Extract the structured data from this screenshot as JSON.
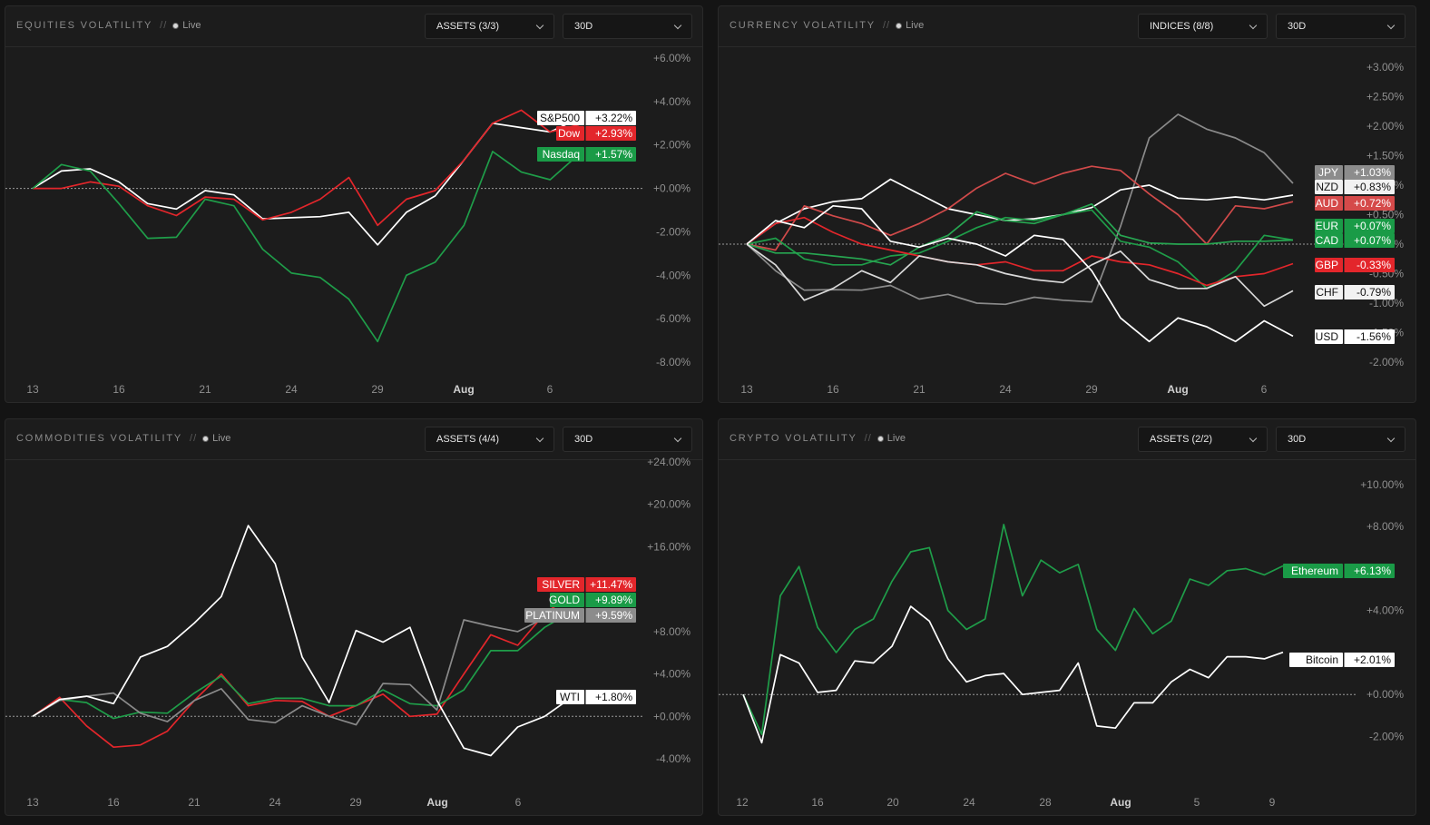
{
  "panels": [
    {
      "title": "EQUITIES VOLATILITY",
      "separator": "//",
      "status": "Live",
      "assets_button": "ASSETS (3/3)",
      "period_button": "30D",
      "chart_data": {
        "type": "line",
        "x_ticks": [
          "13",
          "16",
          "21",
          "24",
          "29",
          "Aug",
          "6"
        ],
        "y_ticks": [
          "+6.00%",
          "+4.00%",
          "+2.00%",
          "+0.00%",
          "-2.00%",
          "-4.00%",
          "-6.00%",
          "-8.00%"
        ],
        "ylim": [
          -8,
          6
        ],
        "ylabel": "",
        "xlabel": "",
        "baseline": 0,
        "series": [
          {
            "name": "S&P500",
            "value_label": "+3.22%",
            "color": "#ffffff",
            "label_bg": "#ffffff",
            "label_fg": "#111111",
            "values": [
              0,
              0.8,
              0.9,
              0.3,
              -0.7,
              -0.95,
              -0.1,
              -0.3,
              -1.4,
              -1.35,
              -1.3,
              -1.1,
              -2.6,
              -1.1,
              -0.35,
              1.3,
              3.0,
              2.8,
              2.6,
              3.22
            ]
          },
          {
            "name": "Dow",
            "value_label": "+2.93%",
            "color": "#e3262b",
            "label_bg": "#e3262b",
            "label_fg": "#ffffff",
            "values": [
              0,
              0,
              0.3,
              0.1,
              -0.8,
              -1.25,
              -0.4,
              -0.5,
              -1.45,
              -1.1,
              -0.5,
              0.5,
              -1.7,
              -0.5,
              -0.1,
              1.3,
              3.0,
              3.6,
              2.6,
              2.93
            ]
          },
          {
            "name": "Nasdaq",
            "value_label": "+1.57%",
            "color": "#1f9d49",
            "label_bg": "#1a9b47",
            "label_fg": "#ffffff",
            "values": [
              0,
              1.1,
              0.8,
              -0.7,
              -2.3,
              -2.25,
              -0.5,
              -0.8,
              -2.8,
              -3.9,
              -4.1,
              -5.1,
              -7.05,
              -4.0,
              -3.4,
              -1.7,
              1.7,
              0.75,
              0.4,
              1.57
            ]
          }
        ]
      }
    },
    {
      "title": "CURRENCY VOLATILITY",
      "separator": "//",
      "status": "Live",
      "assets_button": "INDICES (8/8)",
      "period_button": "30D",
      "chart_data": {
        "type": "line",
        "x_ticks": [
          "13",
          "16",
          "21",
          "24",
          "29",
          "Aug",
          "6"
        ],
        "y_ticks": [
          "+3.00%",
          "+2.50%",
          "+2.00%",
          "+1.50%",
          "+1.00%",
          "+0.50%",
          "+0.00%",
          "-0.50%",
          "-1.00%",
          "-1.50%",
          "-2.00%"
        ],
        "ylim": [
          -2,
          3
        ],
        "ylabel": "",
        "xlabel": "",
        "baseline": 0,
        "series": [
          {
            "name": "JPY",
            "value_label": "+1.03%",
            "color": "#8a8a8a",
            "label_bg": "#8c8c8c",
            "label_fg": "#ffffff",
            "values": [
              0,
              -0.45,
              -0.78,
              -0.77,
              -0.78,
              -0.7,
              -0.93,
              -0.85,
              -1.0,
              -1.02,
              -0.9,
              -0.95,
              -0.98,
              0.3,
              1.8,
              2.2,
              1.95,
              1.8,
              1.55,
              1.03
            ]
          },
          {
            "name": "NZD",
            "value_label": "+0.83%",
            "color": "#ffffff",
            "label_bg": "#f2f2f2",
            "label_fg": "#111111",
            "values": [
              0,
              0.35,
              0.6,
              0.72,
              0.77,
              1.1,
              0.85,
              0.6,
              0.5,
              0.4,
              0.43,
              0.5,
              0.62,
              0.92,
              1.0,
              0.78,
              0.75,
              0.8,
              0.75,
              0.83
            ]
          },
          {
            "name": "AUD",
            "value_label": "+0.72%",
            "color": "#d14a4a",
            "label_bg": "#d54a4a",
            "label_fg": "#ffffff",
            "values": [
              0,
              -0.1,
              0.65,
              0.48,
              0.35,
              0.15,
              0.35,
              0.6,
              0.95,
              1.2,
              1.02,
              1.2,
              1.32,
              1.25,
              0.85,
              0.5,
              0.0,
              0.65,
              0.6,
              0.72
            ]
          },
          {
            "name": "EUR",
            "value_label": "+0.07%",
            "color": "#1f9d49",
            "label_bg": "#1a9b47",
            "label_fg": "#ffffff",
            "values": [
              0,
              0.1,
              -0.25,
              -0.35,
              -0.35,
              -0.2,
              -0.15,
              0.05,
              0.28,
              0.45,
              0.4,
              0.5,
              0.58,
              0.05,
              -0.05,
              -0.3,
              -0.75,
              -0.45,
              0.15,
              0.07
            ]
          },
          {
            "name": "CAD",
            "value_label": "+0.07%",
            "color": "#27a651",
            "label_bg": "#1a9b47",
            "label_fg": "#ffffff",
            "values": [
              0,
              -0.15,
              -0.15,
              -0.2,
              -0.25,
              -0.35,
              -0.05,
              0.15,
              0.55,
              0.4,
              0.35,
              0.5,
              0.68,
              0.15,
              0.02,
              0.0,
              0.0,
              0.05,
              0.05,
              0.07
            ]
          },
          {
            "name": "GBP",
            "value_label": "-0.33%",
            "color": "#e3262b",
            "label_bg": "#e3262b",
            "label_fg": "#ffffff",
            "values": [
              0,
              0.35,
              0.45,
              0.2,
              0.0,
              -0.1,
              -0.2,
              -0.3,
              -0.35,
              -0.3,
              -0.45,
              -0.45,
              -0.2,
              -0.3,
              -0.35,
              -0.5,
              -0.7,
              -0.55,
              -0.5,
              -0.33
            ]
          },
          {
            "name": "CHF",
            "value_label": "-0.79%",
            "color": "#d9d9d9",
            "label_bg": "#f2f2f2",
            "label_fg": "#111111",
            "values": [
              0,
              -0.35,
              -0.95,
              -0.75,
              -0.45,
              -0.65,
              -0.2,
              -0.3,
              -0.35,
              -0.5,
              -0.6,
              -0.65,
              -0.35,
              -0.12,
              -0.6,
              -0.75,
              -0.75,
              -0.55,
              -1.05,
              -0.79
            ]
          },
          {
            "name": "USD",
            "value_label": "-1.56%",
            "color": "#ffffff",
            "label_bg": "#ffffff",
            "label_fg": "#111111",
            "values": [
              0,
              0.4,
              0.28,
              0.65,
              0.6,
              0.05,
              -0.05,
              0.1,
              0.0,
              -0.2,
              0.15,
              0.08,
              -0.45,
              -1.25,
              -1.65,
              -1.25,
              -1.4,
              -1.65,
              -1.3,
              -1.56
            ]
          }
        ]
      }
    },
    {
      "title": "COMMODITIES VOLATILITY",
      "separator": "//",
      "status": "Live",
      "assets_button": "ASSETS (4/4)",
      "period_button": "30D",
      "chart_data": {
        "type": "line",
        "x_ticks": [
          "13",
          "16",
          "21",
          "24",
          "29",
          "Aug",
          "6"
        ],
        "y_ticks": [
          "+24.00%",
          "+20.00%",
          "+16.00%",
          "+8.00%",
          "+4.00%",
          "+0.00%",
          "-4.00%"
        ],
        "ylim": [
          -4,
          24
        ],
        "ylabel": "",
        "xlabel": "",
        "baseline": 0,
        "series": [
          {
            "name": "SILVER",
            "value_label": "+11.47%",
            "color": "#e3262b",
            "label_bg": "#e3262b",
            "label_fg": "#ffffff",
            "values": [
              0,
              1.8,
              -0.9,
              -2.9,
              -2.7,
              -1.4,
              1.5,
              4.0,
              1.0,
              1.5,
              1.4,
              0.0,
              1.0,
              2.1,
              0.0,
              0.2,
              4.0,
              7.7,
              6.7,
              9.7,
              11.47
            ]
          },
          {
            "name": "GOLD",
            "value_label": "+9.89%",
            "color": "#1f9d49",
            "label_bg": "#1a9b47",
            "label_fg": "#ffffff",
            "values": [
              0,
              1.6,
              1.3,
              -0.2,
              0.4,
              0.3,
              2.2,
              3.8,
              1.2,
              1.7,
              1.7,
              1.0,
              1.0,
              2.5,
              1.2,
              1.0,
              2.5,
              6.2,
              6.2,
              8.4,
              9.89
            ]
          },
          {
            "name": "PLATINUM",
            "value_label": "+9.59%",
            "color": "#8a8a8a",
            "label_bg": "#8c8c8c",
            "label_fg": "#ffffff",
            "values": [
              0,
              1.5,
              1.9,
              2.2,
              0.3,
              -0.5,
              1.5,
              2.6,
              -0.3,
              -0.6,
              1.0,
              0.0,
              -0.8,
              3.1,
              3.0,
              0.6,
              9.1,
              8.5,
              8.0,
              9.3,
              9.59
            ]
          },
          {
            "name": "WTI",
            "value_label": "+1.80%",
            "color": "#ffffff",
            "label_bg": "#ffffff",
            "label_fg": "#111111",
            "values": [
              0,
              1.6,
              1.9,
              1.2,
              5.6,
              6.6,
              8.8,
              11.3,
              18.0,
              14.4,
              5.6,
              1.3,
              8.1,
              7.0,
              8.4,
              1.5,
              -3.0,
              -3.7,
              -1.0,
              0.0,
              1.8
            ]
          }
        ]
      }
    },
    {
      "title": "CRYPTO VOLATILITY",
      "separator": "//",
      "status": "Live",
      "assets_button": "ASSETS (2/2)",
      "period_button": "30D",
      "chart_data": {
        "type": "line",
        "x_ticks": [
          "12",
          "16",
          "20",
          "24",
          "28",
          "Aug",
          "5",
          "9"
        ],
        "y_ticks": [
          "+10.00%",
          "+8.00%",
          "+4.00%",
          "+0.00%",
          "-2.00%"
        ],
        "ylim": [
          -2.5,
          10
        ],
        "ylabel": "",
        "xlabel": "",
        "baseline": 0,
        "series": [
          {
            "name": "Ethereum",
            "value_label": "+6.13%",
            "color": "#1f9d49",
            "label_bg": "#1a9b47",
            "label_fg": "#ffffff",
            "values": [
              0,
              -1.9,
              4.7,
              6.1,
              3.2,
              2.0,
              3.1,
              3.6,
              5.4,
              6.8,
              7.0,
              4.0,
              3.1,
              3.6,
              8.1,
              4.7,
              6.4,
              5.8,
              6.2,
              3.1,
              2.1,
              4.1,
              2.9,
              3.5,
              5.5,
              5.2,
              5.9,
              6.0,
              5.7,
              6.13
            ]
          },
          {
            "name": "Bitcoin",
            "value_label": "+2.01%",
            "color": "#ffffff",
            "label_bg": "#ffffff",
            "label_fg": "#111111",
            "values": [
              0,
              -2.3,
              1.9,
              1.5,
              0.1,
              0.2,
              1.6,
              1.5,
              2.3,
              4.2,
              3.5,
              1.7,
              0.6,
              0.9,
              1.0,
              0.0,
              0.1,
              0.2,
              1.5,
              -1.5,
              -1.6,
              -0.4,
              -0.4,
              0.6,
              1.2,
              0.8,
              1.8,
              1.8,
              1.7,
              2.01
            ]
          }
        ]
      }
    }
  ]
}
